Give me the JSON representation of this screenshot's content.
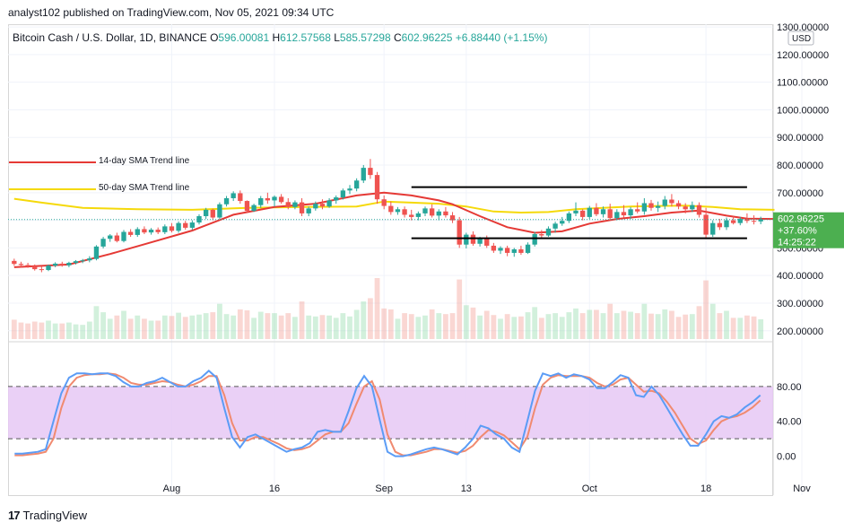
{
  "publisher_line": "analyst102 published on TradingView.com, Nov 05, 2021 09:34 UTC",
  "footer_brand": "TradingView",
  "footer_mark": "17",
  "header": {
    "symbol": "Bitcoin Cash / U.S. Dollar, 1D, BINANCE",
    "o_label": "O",
    "o_value": "596.00081",
    "h_label": "H",
    "h_value": "612.57568",
    "l_label": "L",
    "l_value": "585.57298",
    "c_label": "C",
    "c_value": "602.96225",
    "change": "+6.88440 (+1.15%)"
  },
  "currency": "USD",
  "price_badge": {
    "price": "602.96225",
    "pct": "+37.60%",
    "countdown": "14:25:22"
  },
  "legend": {
    "sma14_label": "14-day SMA Trend line",
    "sma50_label": "50-day SMA Trend line"
  },
  "colors": {
    "bull": "#26a69a",
    "bear": "#ef5350",
    "bull_light": "#7fd49b",
    "bear_light": "#f28b82",
    "sma14": "#e53935",
    "sma50": "#f5d90a",
    "stoch_k": "#5b9cf6",
    "stoch_d": "#f08a70",
    "stoch_band": "#e6c8f5",
    "badge": "#4caf50"
  },
  "chart_data": [
    {
      "type": "candlestick",
      "title": "Bitcoin Cash / U.S. Dollar, 1D, BINANCE",
      "y_axis": {
        "ticks": [
          200,
          300,
          400,
          500,
          600,
          700,
          800,
          900,
          1000,
          1100,
          1200,
          1300
        ],
        "tick_labels": [
          "200.00000",
          "300.00000",
          "400.00000",
          "500.00000",
          "600.00000",
          "700.00000",
          "800.00000",
          "900.00000",
          "1000.00000",
          "1100.00000",
          "1200.00000",
          "1300.00000"
        ],
        "ylim": [
          170,
          1310
        ]
      },
      "x_axis": {
        "tick_labels": [
          "Aug",
          "16",
          "Sep",
          "13",
          "Oct",
          "18",
          "Nov"
        ],
        "tick_dates": [
          "2021-08-01",
          "2021-08-16",
          "2021-09-01",
          "2021-09-13",
          "2021-10-01",
          "2021-10-18",
          "2021-11-01"
        ]
      },
      "dates_start": "2021-07-09",
      "candles": [
        [
          453,
          461,
          435,
          442
        ],
        [
          442,
          450,
          430,
          438
        ],
        [
          438,
          446,
          428,
          434
        ],
        [
          434,
          440,
          418,
          423
        ],
        [
          423,
          432,
          412,
          420
        ],
        [
          420,
          440,
          416,
          436
        ],
        [
          436,
          448,
          430,
          443
        ],
        [
          443,
          450,
          432,
          437
        ],
        [
          437,
          450,
          430,
          446
        ],
        [
          446,
          456,
          440,
          452
        ],
        [
          452,
          460,
          445,
          455
        ],
        [
          455,
          470,
          448,
          462
        ],
        [
          460,
          510,
          455,
          505
        ],
        [
          505,
          540,
          498,
          533
        ],
        [
          533,
          550,
          522,
          545
        ],
        [
          545,
          555,
          520,
          525
        ],
        [
          525,
          565,
          520,
          558
        ],
        [
          558,
          568,
          540,
          547
        ],
        [
          547,
          575,
          540,
          568
        ],
        [
          568,
          578,
          550,
          556
        ],
        [
          556,
          572,
          548,
          566
        ],
        [
          566,
          574,
          550,
          557
        ],
        [
          557,
          585,
          550,
          578
        ],
        [
          578,
          590,
          556,
          562
        ],
        [
          562,
          596,
          555,
          590
        ],
        [
          590,
          598,
          566,
          573
        ],
        [
          573,
          600,
          565,
          592
        ],
        [
          592,
          622,
          585,
          615
        ],
        [
          615,
          645,
          605,
          638
        ],
        [
          638,
          642,
          600,
          610
        ],
        [
          610,
          665,
          605,
          658
        ],
        [
          658,
          688,
          650,
          680
        ],
        [
          680,
          705,
          670,
          698
        ],
        [
          698,
          708,
          660,
          670
        ],
        [
          670,
          672,
          626,
          634
        ],
        [
          634,
          660,
          630,
          655
        ],
        [
          655,
          688,
          645,
          680
        ],
        [
          680,
          700,
          660,
          672
        ],
        [
          672,
          690,
          650,
          685
        ],
        [
          685,
          695,
          660,
          666
        ],
        [
          666,
          680,
          640,
          648
        ],
        [
          648,
          672,
          640,
          665
        ],
        [
          665,
          680,
          615,
          625
        ],
        [
          625,
          650,
          615,
          643
        ],
        [
          643,
          668,
          635,
          660
        ],
        [
          660,
          676,
          640,
          650
        ],
        [
          650,
          680,
          645,
          672
        ],
        [
          672,
          690,
          660,
          683
        ],
        [
          683,
          715,
          675,
          708
        ],
        [
          708,
          728,
          695,
          715
        ],
        [
          715,
          752,
          705,
          744
        ],
        [
          744,
          800,
          735,
          790
        ],
        [
          790,
          822,
          750,
          764
        ],
        [
          764,
          775,
          660,
          676
        ],
        [
          676,
          690,
          640,
          652
        ],
        [
          652,
          668,
          620,
          630
        ],
        [
          630,
          648,
          620,
          640
        ],
        [
          640,
          650,
          610,
          620
        ],
        [
          620,
          638,
          600,
          612
        ],
        [
          612,
          632,
          600,
          625
        ],
        [
          625,
          650,
          615,
          643
        ],
        [
          643,
          658,
          610,
          617
        ],
        [
          617,
          640,
          600,
          632
        ],
        [
          632,
          648,
          610,
          618
        ],
        [
          618,
          630,
          590,
          600
        ],
        [
          600,
          612,
          500,
          512
        ],
        [
          512,
          555,
          498,
          548
        ],
        [
          548,
          560,
          508,
          515
        ],
        [
          515,
          540,
          505,
          532
        ],
        [
          532,
          545,
          500,
          508
        ],
        [
          508,
          518,
          482,
          490
        ],
        [
          490,
          506,
          478,
          500
        ],
        [
          500,
          508,
          470,
          482
        ],
        [
          482,
          500,
          468,
          495
        ],
        [
          495,
          508,
          475,
          482
        ],
        [
          482,
          520,
          478,
          512
        ],
        [
          512,
          558,
          505,
          550
        ],
        [
          550,
          565,
          535,
          545
        ],
        [
          545,
          578,
          540,
          570
        ],
        [
          570,
          595,
          555,
          588
        ],
        [
          588,
          612,
          580,
          598
        ],
        [
          598,
          632,
          590,
          625
        ],
        [
          625,
          665,
          615,
          635
        ],
        [
          635,
          640,
          600,
          612
        ],
        [
          612,
          652,
          605,
          645
        ],
        [
          645,
          662,
          615,
          622
        ],
        [
          622,
          650,
          610,
          640
        ],
        [
          640,
          660,
          600,
          608
        ],
        [
          608,
          640,
          600,
          630
        ],
        [
          630,
          655,
          610,
          618
        ],
        [
          618,
          648,
          605,
          640
        ],
        [
          640,
          665,
          625,
          632
        ],
        [
          632,
          680,
          620,
          662
        ],
        [
          662,
          674,
          635,
          645
        ],
        [
          645,
          668,
          630,
          652
        ],
        [
          652,
          688,
          640,
          675
        ],
        [
          675,
          695,
          650,
          662
        ],
        [
          662,
          672,
          640,
          650
        ],
        [
          650,
          662,
          625,
          640
        ],
        [
          640,
          668,
          630,
          655
        ],
        [
          655,
          665,
          610,
          620
        ],
        [
          620,
          645,
          535,
          548
        ],
        [
          548,
          600,
          540,
          590
        ],
        [
          590,
          605,
          565,
          575
        ],
        [
          575,
          610,
          565,
          600
        ],
        [
          600,
          615,
          585,
          590
        ],
        [
          590,
          612,
          582,
          605
        ],
        [
          605,
          625,
          590,
          598
        ],
        [
          598,
          618,
          585,
          596
        ],
        [
          596,
          613,
          586,
          603
        ]
      ],
      "sma14": [
        [
          0,
          430
        ],
        [
          8,
          440
        ],
        [
          14,
          478
        ],
        [
          20,
          520
        ],
        [
          26,
          563
        ],
        [
          32,
          620
        ],
        [
          38,
          648
        ],
        [
          44,
          660
        ],
        [
          50,
          690
        ],
        [
          54,
          700
        ],
        [
          58,
          690
        ],
        [
          62,
          672
        ],
        [
          64,
          658
        ],
        [
          68,
          615
        ],
        [
          72,
          575
        ],
        [
          76,
          555
        ],
        [
          80,
          560
        ],
        [
          84,
          588
        ],
        [
          88,
          605
        ],
        [
          92,
          615
        ],
        [
          96,
          628
        ],
        [
          100,
          635
        ],
        [
          104,
          617
        ],
        [
          107,
          606
        ],
        [
          111,
          605
        ]
      ],
      "sma50": [
        [
          0,
          678
        ],
        [
          4,
          664
        ],
        [
          10,
          645
        ],
        [
          18,
          640
        ],
        [
          26,
          638
        ],
        [
          34,
          645
        ],
        [
          42,
          648
        ],
        [
          50,
          650
        ],
        [
          54,
          668
        ],
        [
          58,
          664
        ],
        [
          62,
          660
        ],
        [
          66,
          650
        ],
        [
          70,
          632
        ],
        [
          74,
          628
        ],
        [
          78,
          630
        ],
        [
          82,
          640
        ],
        [
          86,
          645
        ],
        [
          90,
          650
        ],
        [
          94,
          652
        ],
        [
          98,
          653
        ],
        [
          102,
          648
        ],
        [
          106,
          640
        ],
        [
          111,
          638
        ]
      ],
      "channel": {
        "upper": 720,
        "lower": 535,
        "start_index": 58,
        "end_index": 107
      },
      "last_price": 602.96225
    },
    {
      "type": "line",
      "title": "Stochastic",
      "y_axis": {
        "ticks": [
          0,
          40,
          80
        ],
        "tick_labels": [
          "0.00",
          "40.00",
          "80.00"
        ],
        "ylim": [
          -20,
          120
        ],
        "band": [
          20,
          80
        ]
      },
      "series": [
        {
          "name": "K",
          "values": [
            3,
            3,
            4,
            5,
            8,
            40,
            72,
            90,
            95,
            95,
            94,
            95,
            95,
            92,
            85,
            80,
            80,
            84,
            86,
            90,
            85,
            80,
            80,
            86,
            90,
            98,
            90,
            55,
            22,
            10,
            22,
            25,
            20,
            15,
            10,
            5,
            8,
            10,
            15,
            28,
            30,
            28,
            28,
            52,
            78,
            92,
            80,
            42,
            5,
            0,
            0,
            2,
            5,
            8,
            10,
            8,
            5,
            2,
            10,
            20,
            35,
            32,
            25,
            20,
            10,
            5,
            40,
            75,
            95,
            92,
            95,
            90,
            94,
            92,
            88,
            78,
            78,
            85,
            93,
            90,
            70,
            68,
            80,
            70,
            55,
            40,
            25,
            12,
            12,
            25,
            40,
            46,
            44,
            48,
            56,
            62,
            70
          ]
        },
        {
          "name": "D",
          "values": [
            1,
            1,
            2,
            3,
            5,
            20,
            55,
            80,
            90,
            93,
            94,
            94,
            95,
            94,
            90,
            84,
            82,
            82,
            84,
            86,
            85,
            82,
            80,
            82,
            86,
            92,
            92,
            70,
            38,
            18,
            18,
            22,
            22,
            18,
            14,
            9,
            7,
            8,
            11,
            18,
            25,
            28,
            28,
            38,
            60,
            80,
            86,
            65,
            25,
            5,
            1,
            1,
            3,
            5,
            8,
            8,
            6,
            4,
            6,
            12,
            22,
            30,
            28,
            24,
            16,
            8,
            22,
            55,
            82,
            90,
            93,
            92,
            92,
            92,
            90,
            84,
            80,
            82,
            88,
            90,
            82,
            74,
            75,
            72,
            62,
            50,
            35,
            20,
            14,
            18,
            30,
            40,
            44,
            46,
            50,
            56,
            64
          ]
        }
      ]
    }
  ]
}
